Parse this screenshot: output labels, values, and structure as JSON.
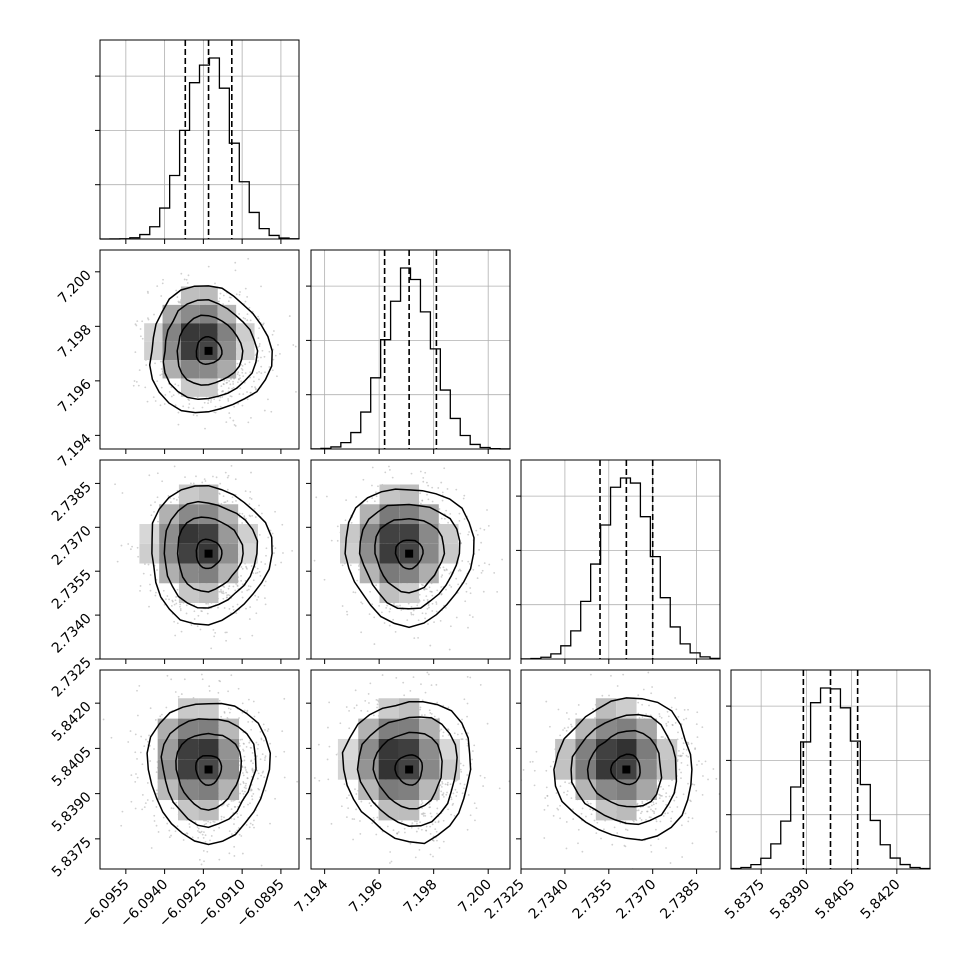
{
  "chart_data": {
    "type": "corner",
    "grid": true,
    "parameters": [
      {
        "mean": -6.0923,
        "sigma": 0.0009,
        "quantiles": [
          -6.0932,
          -6.0923,
          -6.0914
        ],
        "range": [
          -6.0965,
          -6.0888
        ],
        "ticks": [
          -6.0955,
          -6.094,
          -6.0925,
          -6.091,
          -6.0895
        ],
        "tick_labels": [
          "−6.0955",
          "−6.0940",
          "−6.0925",
          "−6.0910",
          "−6.0895"
        ]
      },
      {
        "mean": 7.1971,
        "sigma": 0.0009,
        "quantiles": [
          7.1962,
          7.1971,
          7.1981
        ],
        "range": [
          7.1935,
          7.2008
        ],
        "ticks": [
          7.194,
          7.196,
          7.198,
          7.2
        ],
        "tick_labels": [
          "7.194",
          "7.196",
          "7.198",
          "7.200"
        ]
      },
      {
        "mean": 2.7361,
        "sigma": 0.0009,
        "quantiles": [
          2.7352,
          2.7361,
          2.737
        ],
        "range": [
          2.7325,
          2.7393
        ],
        "ticks": [
          2.7325,
          2.734,
          2.7355,
          2.737,
          2.7385
        ],
        "tick_labels": [
          "2.7325",
          "2.7340",
          "2.7355",
          "2.7370",
          "2.7385"
        ]
      },
      {
        "mean": 5.8398,
        "sigma": 0.0009,
        "quantiles": [
          5.8389,
          5.8398,
          5.8407
        ],
        "range": [
          5.8365,
          5.8431
        ],
        "ticks": [
          5.8375,
          5.839,
          5.8405,
          5.842
        ],
        "tick_labels": [
          "5.8375",
          "5.8390",
          "5.8405",
          "5.8420"
        ]
      }
    ]
  }
}
